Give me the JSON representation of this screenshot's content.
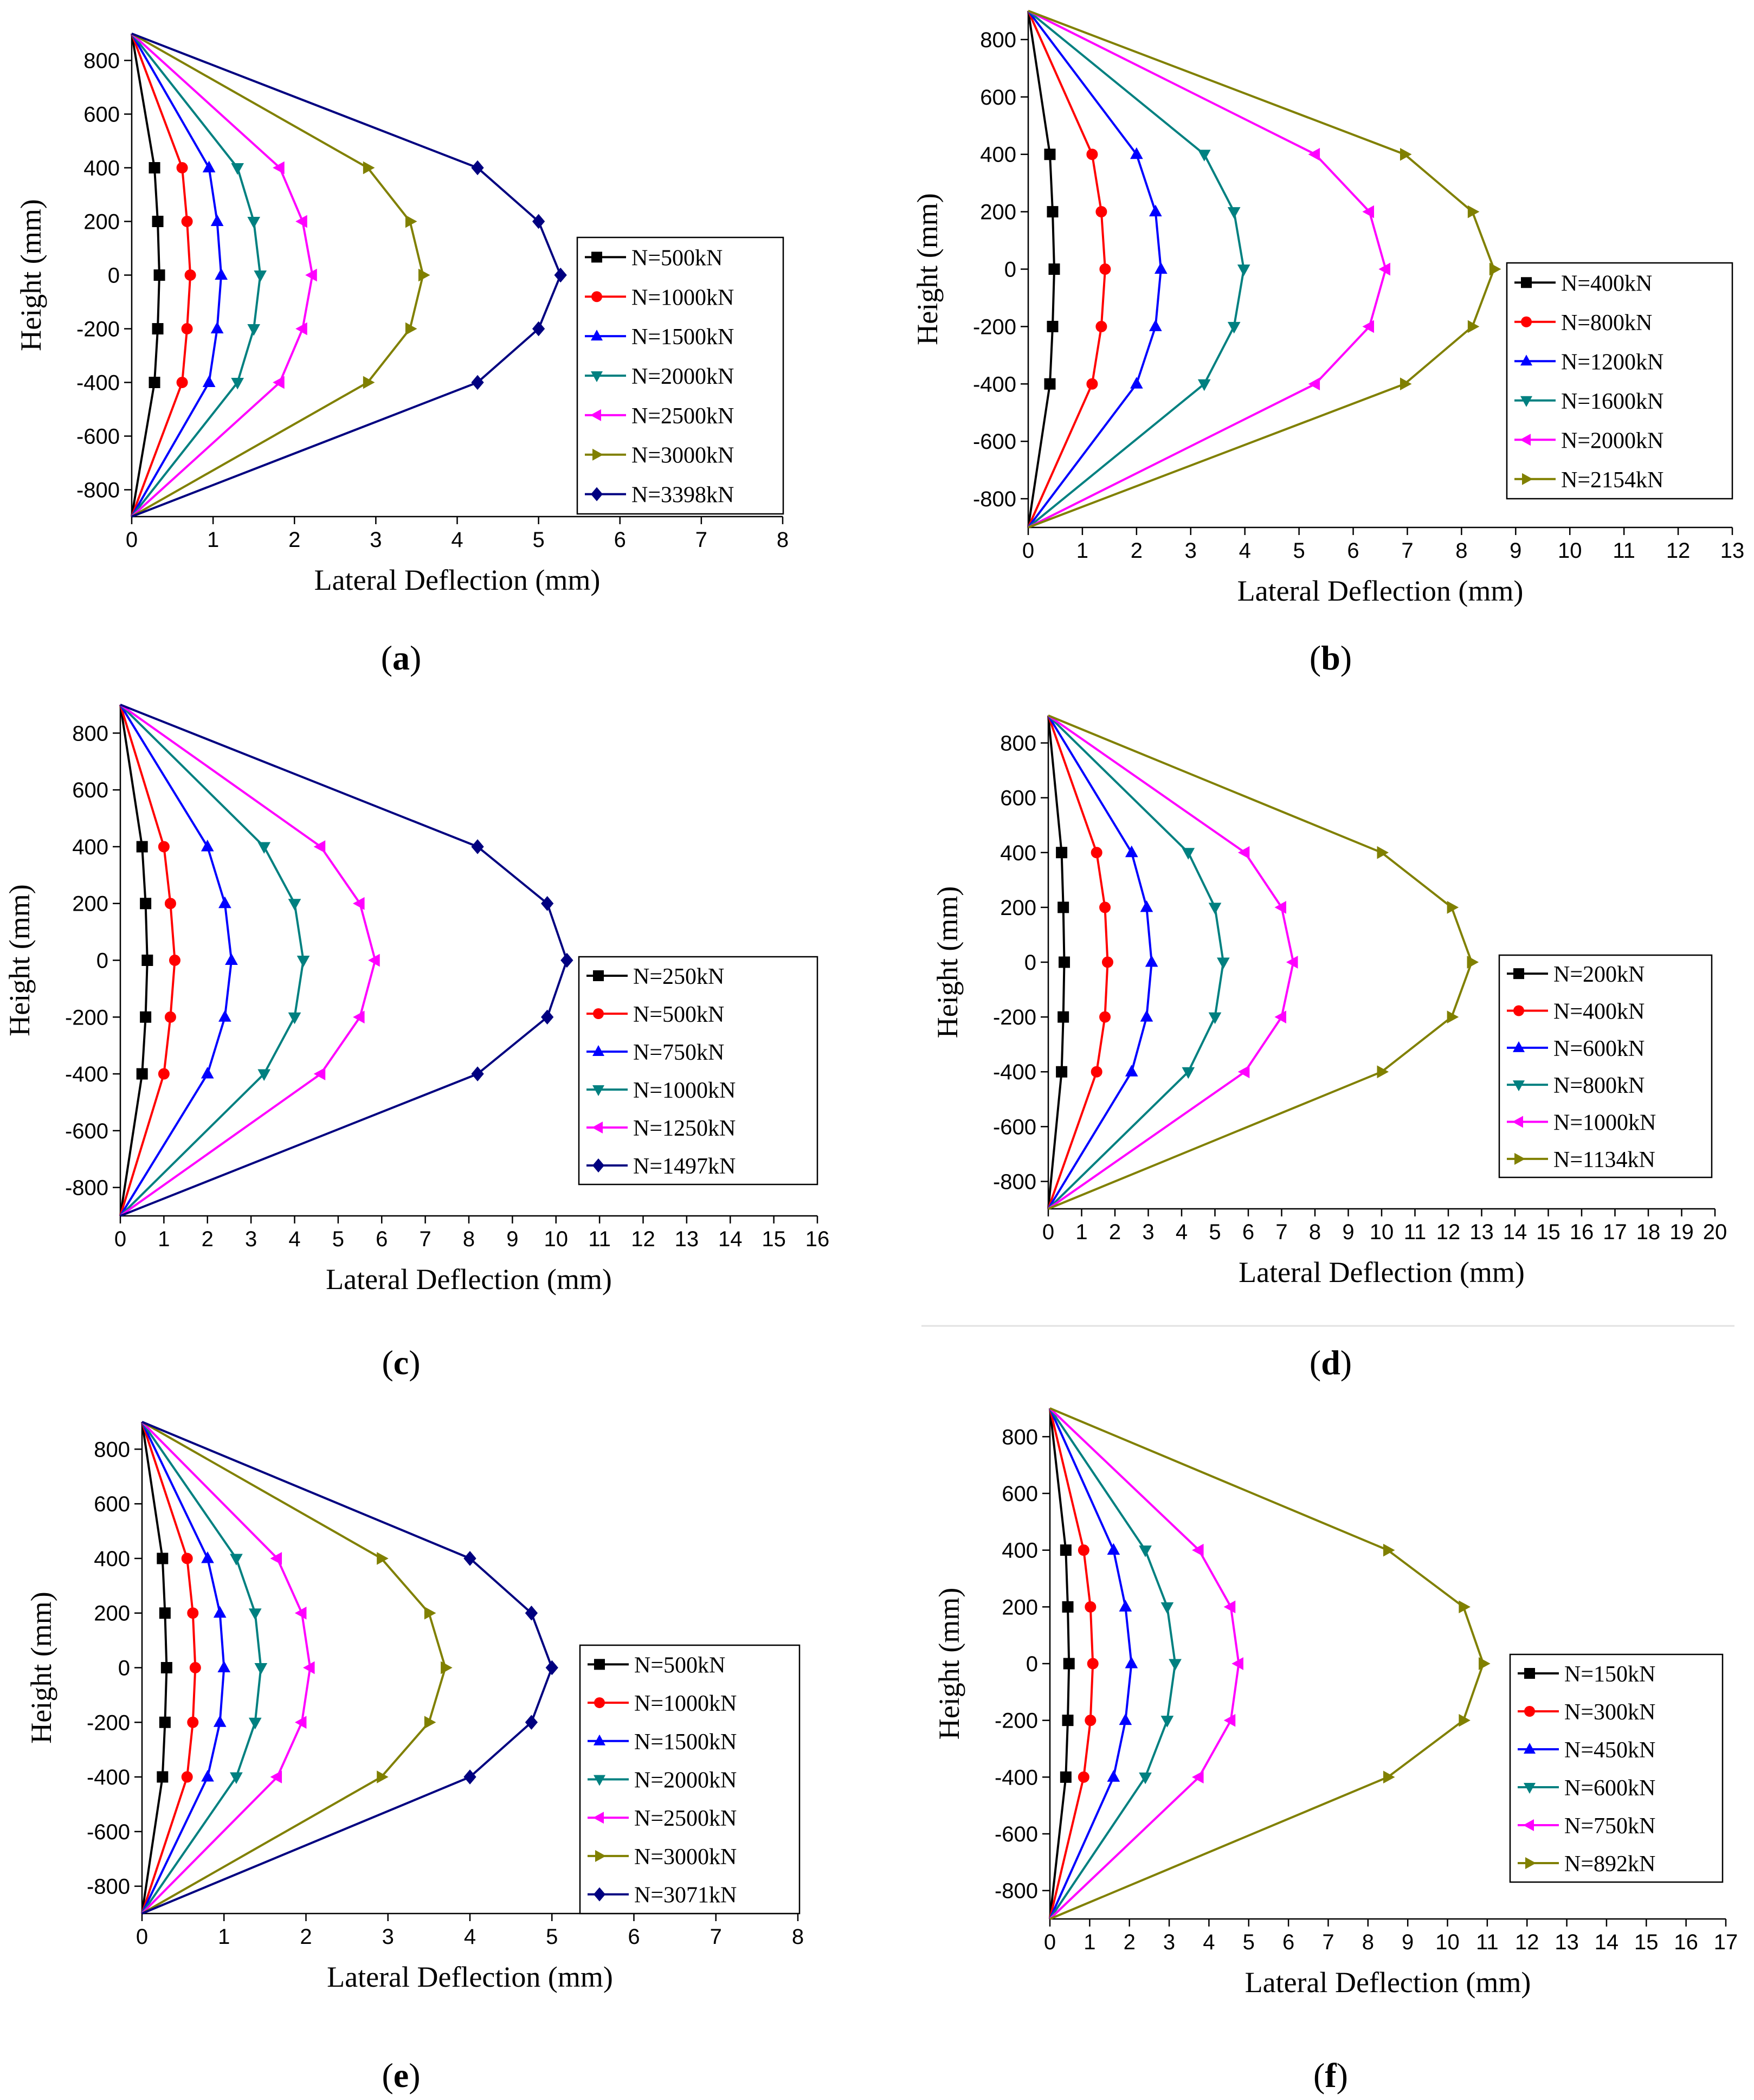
{
  "colors": {
    "black": "#000000",
    "red": "#ff0000",
    "blue": "#0000ff",
    "teal": "#008080",
    "magenta": "#ff00ff",
    "olive": "#808000",
    "navy": "#000080"
  },
  "chart_data": [
    {
      "panel": "a",
      "type": "line",
      "xlabel": "Lateral Deflection (mm)",
      "ylabel": "Height (mm)",
      "xlim": [
        0,
        8
      ],
      "xticks": [
        0,
        1,
        2,
        3,
        4,
        5,
        6,
        7,
        8
      ],
      "ylim": [
        -900,
        900
      ],
      "yticks": [
        -800,
        -600,
        -400,
        -200,
        0,
        200,
        400,
        600,
        800
      ],
      "legend_position": "right-middle",
      "heights": [
        -900,
        -400,
        -200,
        0,
        200,
        400,
        900
      ],
      "series": [
        {
          "name": "N=500kN",
          "color": "#000000",
          "marker": "square",
          "x": [
            0,
            0.28,
            0.32,
            0.34,
            0.32,
            0.28,
            0
          ]
        },
        {
          "name": "N=1000kN",
          "color": "#ff0000",
          "marker": "circle",
          "x": [
            0,
            0.62,
            0.68,
            0.72,
            0.68,
            0.62,
            0
          ]
        },
        {
          "name": "N=1500kN",
          "color": "#0000ff",
          "marker": "triangle-up",
          "x": [
            0,
            0.95,
            1.05,
            1.1,
            1.05,
            0.95,
            0
          ]
        },
        {
          "name": "N=2000kN",
          "color": "#008080",
          "marker": "triangle-down",
          "x": [
            0,
            1.3,
            1.5,
            1.58,
            1.5,
            1.3,
            0
          ]
        },
        {
          "name": "N=2500kN",
          "color": "#ff00ff",
          "marker": "triangle-left",
          "x": [
            0,
            1.82,
            2.1,
            2.22,
            2.1,
            1.82,
            0
          ]
        },
        {
          "name": "N=3000kN",
          "color": "#808000",
          "marker": "triangle-right",
          "x": [
            0,
            2.9,
            3.42,
            3.58,
            3.42,
            2.9,
            0
          ]
        },
        {
          "name": "N=3398kN",
          "color": "#000080",
          "marker": "diamond",
          "x": [
            0,
            4.25,
            5.0,
            5.27,
            5.0,
            4.25,
            0
          ]
        }
      ]
    },
    {
      "panel": "b",
      "type": "line",
      "xlabel": "Lateral Deflection (mm)",
      "ylabel": "Height (mm)",
      "xlim": [
        0,
        13
      ],
      "xticks": [
        0,
        1,
        2,
        3,
        4,
        5,
        6,
        7,
        8,
        9,
        10,
        11,
        12,
        13
      ],
      "ylim": [
        -900,
        900
      ],
      "yticks": [
        -800,
        -600,
        -400,
        -200,
        0,
        200,
        400,
        600,
        800
      ],
      "legend_position": "right-middle",
      "heights": [
        -900,
        -400,
        -200,
        0,
        200,
        400,
        900
      ],
      "series": [
        {
          "name": "N=400kN",
          "color": "#000000",
          "marker": "square",
          "x": [
            0,
            0.4,
            0.45,
            0.48,
            0.45,
            0.4,
            0
          ]
        },
        {
          "name": "N=800kN",
          "color": "#ff0000",
          "marker": "circle",
          "x": [
            0,
            1.18,
            1.35,
            1.42,
            1.35,
            1.18,
            0
          ]
        },
        {
          "name": "N=1200kN",
          "color": "#0000ff",
          "marker": "triangle-up",
          "x": [
            0,
            2.0,
            2.35,
            2.45,
            2.35,
            2.0,
            0
          ]
        },
        {
          "name": "N=1600kN",
          "color": "#008080",
          "marker": "triangle-down",
          "x": [
            0,
            3.25,
            3.8,
            3.98,
            3.8,
            3.25,
            0
          ]
        },
        {
          "name": "N=2000kN",
          "color": "#ff00ff",
          "marker": "triangle-left",
          "x": [
            0,
            5.3,
            6.3,
            6.6,
            6.3,
            5.3,
            0
          ]
        },
        {
          "name": "N=2154kN",
          "color": "#808000",
          "marker": "triangle-right",
          "x": [
            0,
            6.95,
            8.2,
            8.6,
            8.2,
            6.95,
            0
          ]
        }
      ]
    },
    {
      "panel": "c",
      "type": "line",
      "xlabel": "Lateral Deflection (mm)",
      "ylabel": "Height (mm)",
      "xlim": [
        0,
        16
      ],
      "xticks": [
        0,
        1,
        2,
        3,
        4,
        5,
        6,
        7,
        8,
        9,
        10,
        11,
        12,
        13,
        14,
        15,
        16
      ],
      "ylim": [
        -900,
        900
      ],
      "yticks": [
        -800,
        -600,
        -400,
        -200,
        0,
        200,
        400,
        600,
        800
      ],
      "legend_position": "right-middle",
      "heights": [
        -900,
        -400,
        -200,
        0,
        200,
        400,
        900
      ],
      "series": [
        {
          "name": "N=250kN",
          "color": "#000000",
          "marker": "square",
          "x": [
            0,
            0.5,
            0.58,
            0.62,
            0.58,
            0.5,
            0
          ]
        },
        {
          "name": "N=500kN",
          "color": "#ff0000",
          "marker": "circle",
          "x": [
            0,
            1.0,
            1.15,
            1.25,
            1.15,
            1.0,
            0
          ]
        },
        {
          "name": "N=750kN",
          "color": "#0000ff",
          "marker": "triangle-up",
          "x": [
            0,
            2.0,
            2.4,
            2.55,
            2.4,
            2.0,
            0
          ]
        },
        {
          "name": "N=1000kN",
          "color": "#008080",
          "marker": "triangle-down",
          "x": [
            0,
            3.3,
            4.0,
            4.2,
            4.0,
            3.3,
            0
          ]
        },
        {
          "name": "N=1250kN",
          "color": "#ff00ff",
          "marker": "triangle-left",
          "x": [
            0,
            4.6,
            5.5,
            5.85,
            5.5,
            4.6,
            0
          ]
        },
        {
          "name": "N=1497kN",
          "color": "#000080",
          "marker": "diamond",
          "x": [
            0,
            8.2,
            9.8,
            10.25,
            9.8,
            8.2,
            0
          ]
        }
      ]
    },
    {
      "panel": "d",
      "type": "line",
      "xlabel": "Lateral Deflection (mm)",
      "ylabel": "Height (mm)",
      "xlim": [
        0,
        20
      ],
      "xticks": [
        0,
        1,
        2,
        3,
        4,
        5,
        6,
        7,
        8,
        9,
        10,
        11,
        12,
        13,
        14,
        15,
        16,
        17,
        18,
        19,
        20
      ],
      "ylim": [
        -900,
        900
      ],
      "yticks": [
        -800,
        -600,
        -400,
        -200,
        0,
        200,
        400,
        600,
        800
      ],
      "legend_position": "right-middle",
      "heights": [
        -900,
        -400,
        -200,
        0,
        200,
        400,
        900
      ],
      "series": [
        {
          "name": "N=200kN",
          "color": "#000000",
          "marker": "square",
          "x": [
            0,
            0.4,
            0.45,
            0.48,
            0.45,
            0.4,
            0
          ]
        },
        {
          "name": "N=400kN",
          "color": "#ff0000",
          "marker": "circle",
          "x": [
            0,
            1.45,
            1.7,
            1.78,
            1.7,
            1.45,
            0
          ]
        },
        {
          "name": "N=600kN",
          "color": "#0000ff",
          "marker": "triangle-up",
          "x": [
            0,
            2.5,
            2.95,
            3.1,
            2.95,
            2.5,
            0
          ]
        },
        {
          "name": "N=800kN",
          "color": "#008080",
          "marker": "triangle-down",
          "x": [
            0,
            4.2,
            5.0,
            5.25,
            5.0,
            4.2,
            0
          ]
        },
        {
          "name": "N=1000kN",
          "color": "#ff00ff",
          "marker": "triangle-left",
          "x": [
            0,
            5.9,
            7.0,
            7.35,
            7.0,
            5.9,
            0
          ]
        },
        {
          "name": "N=1134kN",
          "color": "#808000",
          "marker": "triangle-right",
          "x": [
            0,
            10.0,
            12.1,
            12.7,
            12.1,
            10.0,
            0
          ]
        }
      ]
    },
    {
      "panel": "e",
      "type": "line",
      "xlabel": "Lateral Deflection (mm)",
      "ylabel": "Height (mm)",
      "xlim": [
        0,
        8
      ],
      "xticks": [
        0,
        1,
        2,
        3,
        4,
        5,
        6,
        7,
        8
      ],
      "ylim": [
        -900,
        900
      ],
      "yticks": [
        -800,
        -600,
        -400,
        -200,
        0,
        200,
        400,
        600,
        800
      ],
      "legend_position": "right-middle",
      "heights": [
        -900,
        -400,
        -200,
        0,
        200,
        400,
        900
      ],
      "series": [
        {
          "name": "N=500kN",
          "color": "#000000",
          "marker": "square",
          "x": [
            0,
            0.25,
            0.28,
            0.3,
            0.28,
            0.25,
            0
          ]
        },
        {
          "name": "N=1000kN",
          "color": "#ff0000",
          "marker": "circle",
          "x": [
            0,
            0.55,
            0.62,
            0.65,
            0.62,
            0.55,
            0
          ]
        },
        {
          "name": "N=1500kN",
          "color": "#0000ff",
          "marker": "triangle-up",
          "x": [
            0,
            0.8,
            0.95,
            1.0,
            0.95,
            0.8,
            0
          ]
        },
        {
          "name": "N=2000kN",
          "color": "#008080",
          "marker": "triangle-down",
          "x": [
            0,
            1.15,
            1.38,
            1.45,
            1.38,
            1.15,
            0
          ]
        },
        {
          "name": "N=2500kN",
          "color": "#ff00ff",
          "marker": "triangle-left",
          "x": [
            0,
            1.65,
            1.95,
            2.05,
            1.95,
            1.65,
            0
          ]
        },
        {
          "name": "N=3000kN",
          "color": "#808000",
          "marker": "triangle-right",
          "x": [
            0,
            2.92,
            3.5,
            3.7,
            3.5,
            2.92,
            0
          ]
        },
        {
          "name": "N=3071kN",
          "color": "#000080",
          "marker": "diamond",
          "x": [
            0,
            4.0,
            4.75,
            5.0,
            4.75,
            4.0,
            0
          ]
        }
      ]
    },
    {
      "panel": "f",
      "type": "line",
      "xlabel": "Lateral Deflection (mm)",
      "ylabel": "Height (mm)",
      "xlim": [
        0,
        17
      ],
      "xticks": [
        0,
        1,
        2,
        3,
        4,
        5,
        6,
        7,
        8,
        9,
        10,
        11,
        12,
        13,
        14,
        15,
        16,
        17
      ],
      "ylim": [
        -900,
        900
      ],
      "yticks": [
        -800,
        -600,
        -400,
        -200,
        0,
        200,
        400,
        600,
        800
      ],
      "legend_position": "right-middle",
      "heights": [
        -900,
        -400,
        -200,
        0,
        200,
        400,
        900
      ],
      "series": [
        {
          "name": "N=150kN",
          "color": "#000000",
          "marker": "square",
          "x": [
            0,
            0.4,
            0.45,
            0.48,
            0.45,
            0.4,
            0
          ]
        },
        {
          "name": "N=300kN",
          "color": "#ff0000",
          "marker": "circle",
          "x": [
            0,
            0.85,
            1.02,
            1.08,
            1.02,
            0.85,
            0
          ]
        },
        {
          "name": "N=450kN",
          "color": "#0000ff",
          "marker": "triangle-up",
          "x": [
            0,
            1.6,
            1.9,
            2.05,
            1.9,
            1.6,
            0
          ]
        },
        {
          "name": "N=600kN",
          "color": "#008080",
          "marker": "triangle-down",
          "x": [
            0,
            2.4,
            2.95,
            3.15,
            2.95,
            2.4,
            0
          ]
        },
        {
          "name": "N=750kN",
          "color": "#ff00ff",
          "marker": "triangle-left",
          "x": [
            0,
            3.75,
            4.55,
            4.75,
            4.55,
            3.75,
            0
          ]
        },
        {
          "name": "N=892kN",
          "color": "#808000",
          "marker": "triangle-right",
          "x": [
            0,
            8.5,
            10.4,
            10.9,
            10.4,
            8.5,
            0
          ]
        }
      ]
    }
  ]
}
